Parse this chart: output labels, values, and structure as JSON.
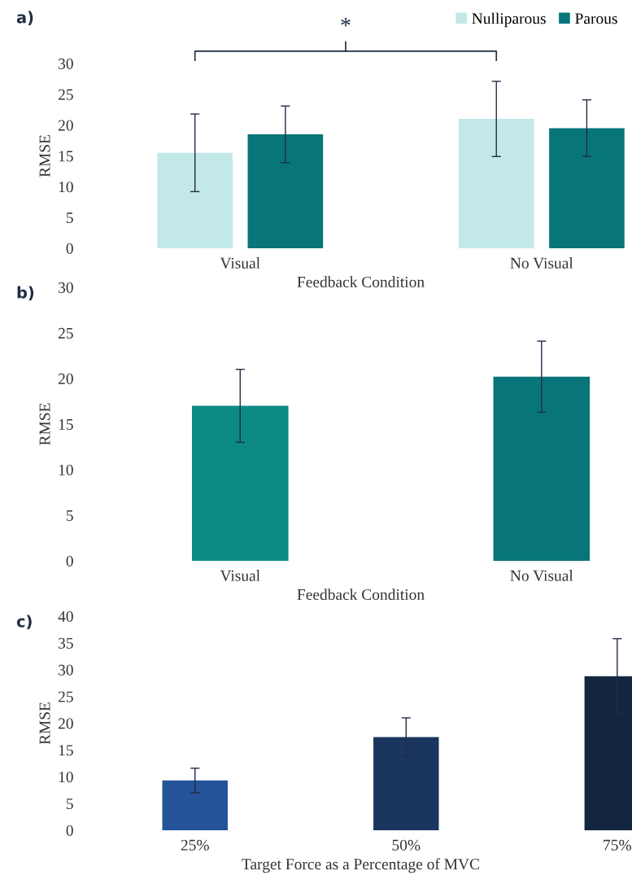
{
  "chart_data": [
    {
      "type": "bar",
      "xlabel": "Feedback Condition",
      "ylabel": "RMSE",
      "categories": [
        "Visual",
        "No Visual"
      ],
      "series": [
        {
          "name": "Nulliparous",
          "color": "#c2e8e8",
          "values": [
            15.5,
            21.0
          ],
          "errors": [
            6.3,
            6.1
          ]
        },
        {
          "name": "Parous",
          "color": "#08757a",
          "values": [
            18.5,
            19.5
          ],
          "errors": [
            4.6,
            4.6
          ]
        }
      ],
      "ylim": [
        0,
        30
      ],
      "yticks": [
        0,
        5,
        10,
        15,
        20,
        25,
        30
      ],
      "grid": false,
      "legend": "top right",
      "annotations": [
        "a)",
        "*"
      ]
    },
    {
      "type": "bar",
      "xlabel": "Feedback Condition",
      "ylabel": "RMSE",
      "categories": [
        "Visual",
        "No Visual"
      ],
      "values": [
        17.0,
        20.2
      ],
      "errors": [
        4.0,
        3.9
      ],
      "colors": [
        "#0e8a86",
        "#08757a"
      ],
      "ylim": [
        0,
        30
      ],
      "yticks": [
        0,
        5,
        10,
        15,
        20,
        25,
        30
      ],
      "grid": false,
      "annotations": [
        "b)"
      ]
    },
    {
      "type": "bar",
      "xlabel": "Target Force as a Percentage of MVC",
      "ylabel": "RMSE",
      "categories": [
        "25%",
        "50%",
        "75%"
      ],
      "values": [
        9.3,
        17.4,
        28.8
      ],
      "errors": [
        2.3,
        3.6,
        7.0
      ],
      "colors": [
        "#24539a",
        "#1a365f",
        "#132640"
      ],
      "ylim": [
        0,
        40
      ],
      "yticks": [
        0,
        5,
        10,
        15,
        20,
        25,
        30,
        35,
        40
      ],
      "grid": false,
      "annotations": [
        "c)"
      ]
    }
  ]
}
